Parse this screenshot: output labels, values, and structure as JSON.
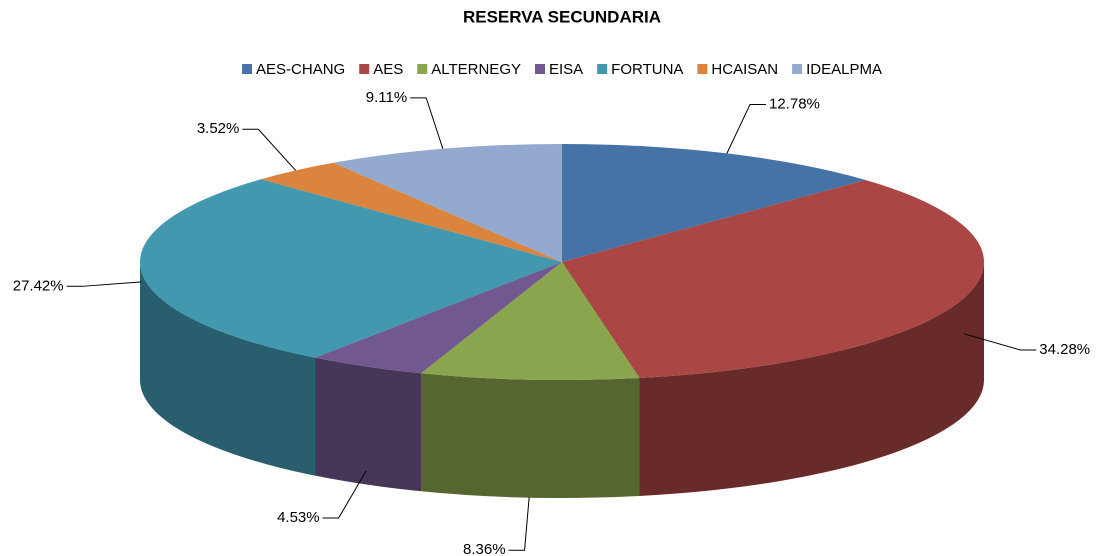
{
  "chart_data": {
    "type": "pie",
    "title": "RESERVA SECUNDARIA",
    "categories": [
      "AES-CHANG",
      "AES",
      "ALTERNEGY",
      "EISA",
      "FORTUNA",
      "HCAISAN",
      "IDEALPMA"
    ],
    "values": [
      12.78,
      34.28,
      8.36,
      4.53,
      27.42,
      3.52,
      9.11
    ],
    "value_labels": [
      "12.78%",
      "34.28%",
      "8.36%",
      "4.53%",
      "27.42%",
      "3.52%",
      "9.11%"
    ],
    "colors": [
      "#4572a7",
      "#aa4643",
      "#89a54e",
      "#71588f",
      "#4198af",
      "#db843d",
      "#93a9cf"
    ],
    "legend": "top",
    "3d": true
  }
}
